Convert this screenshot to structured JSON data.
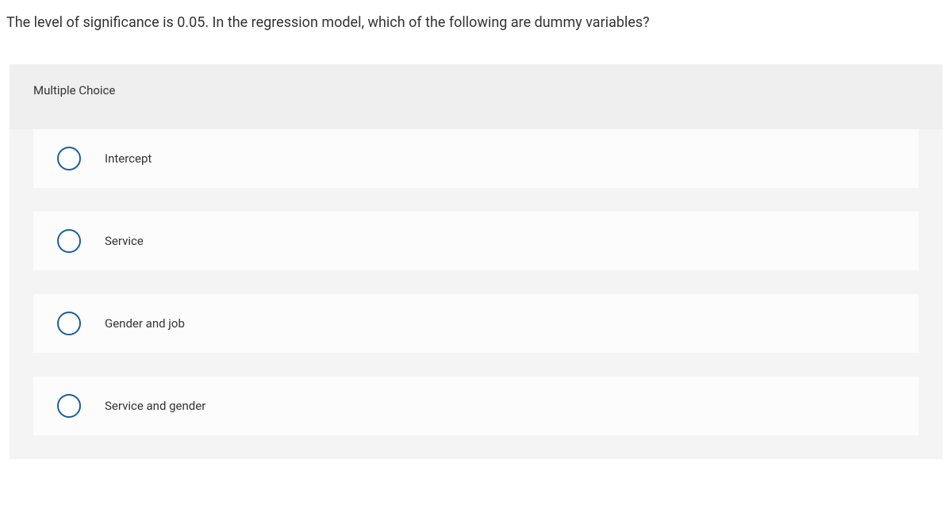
{
  "question": {
    "text": "The level of significance is 0.05. In the regression model, which of the following are dummy variables?"
  },
  "section_header": "Multiple Choice",
  "options": [
    {
      "label": "Intercept"
    },
    {
      "label": "Service"
    },
    {
      "label": "Gender and job"
    },
    {
      "label": "Service and gender"
    }
  ],
  "colors": {
    "page_bg": "#ffffff",
    "container_bg": "#f4f4f4",
    "header_bg": "#efefef",
    "option_bg": "#fcfcfc",
    "radio_border": "#1a5f9e",
    "text": "#333333"
  },
  "typography": {
    "question_fontsize": 18,
    "header_fontsize": 15,
    "option_fontsize": 15
  }
}
